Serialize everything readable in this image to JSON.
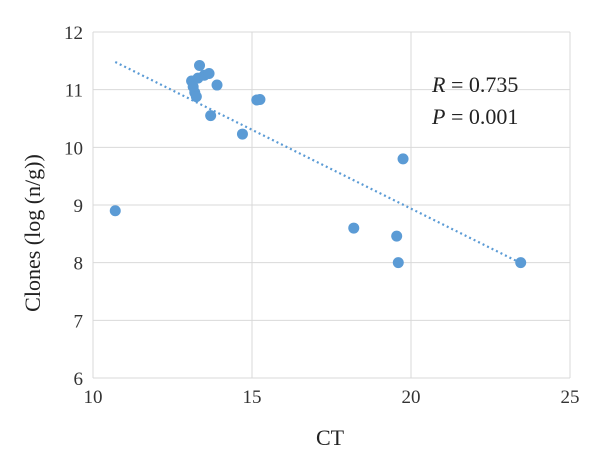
{
  "chart_data": {
    "type": "scatter",
    "title": "",
    "xlabel": "CT",
    "ylabel": "Clones (log (n/g))",
    "xlim": [
      10,
      25
    ],
    "ylim": [
      6,
      12
    ],
    "xticks": [
      "10",
      "15",
      "20",
      "25"
    ],
    "yticks": [
      "6",
      "7",
      "8",
      "9",
      "10",
      "11",
      "12"
    ],
    "grid": true,
    "legend": "none",
    "marker_color": "#5b9bd5",
    "trendline": {
      "style": "dotted",
      "color": "#5b9bd5",
      "x": [
        10.7,
        23.5
      ],
      "y": [
        11.48,
        7.98
      ]
    },
    "annotations": {
      "r_label": "R = 0.735",
      "p_label": "P = 0.001"
    },
    "series": [
      {
        "points": [
          {
            "x": 10.7,
            "y": 8.9
          },
          {
            "x": 13.1,
            "y": 11.15
          },
          {
            "x": 13.15,
            "y": 11.05
          },
          {
            "x": 13.2,
            "y": 10.95
          },
          {
            "x": 13.25,
            "y": 10.88
          },
          {
            "x": 13.3,
            "y": 11.2
          },
          {
            "x": 13.35,
            "y": 11.42
          },
          {
            "x": 13.5,
            "y": 11.25
          },
          {
            "x": 13.65,
            "y": 11.28
          },
          {
            "x": 13.7,
            "y": 10.55
          },
          {
            "x": 13.9,
            "y": 11.08
          },
          {
            "x": 14.7,
            "y": 10.23
          },
          {
            "x": 15.15,
            "y": 10.82
          },
          {
            "x": 15.25,
            "y": 10.83
          },
          {
            "x": 18.2,
            "y": 8.6
          },
          {
            "x": 19.55,
            "y": 8.46
          },
          {
            "x": 19.6,
            "y": 8.0
          },
          {
            "x": 19.75,
            "y": 9.8
          },
          {
            "x": 23.45,
            "y": 8.0
          }
        ]
      }
    ]
  }
}
